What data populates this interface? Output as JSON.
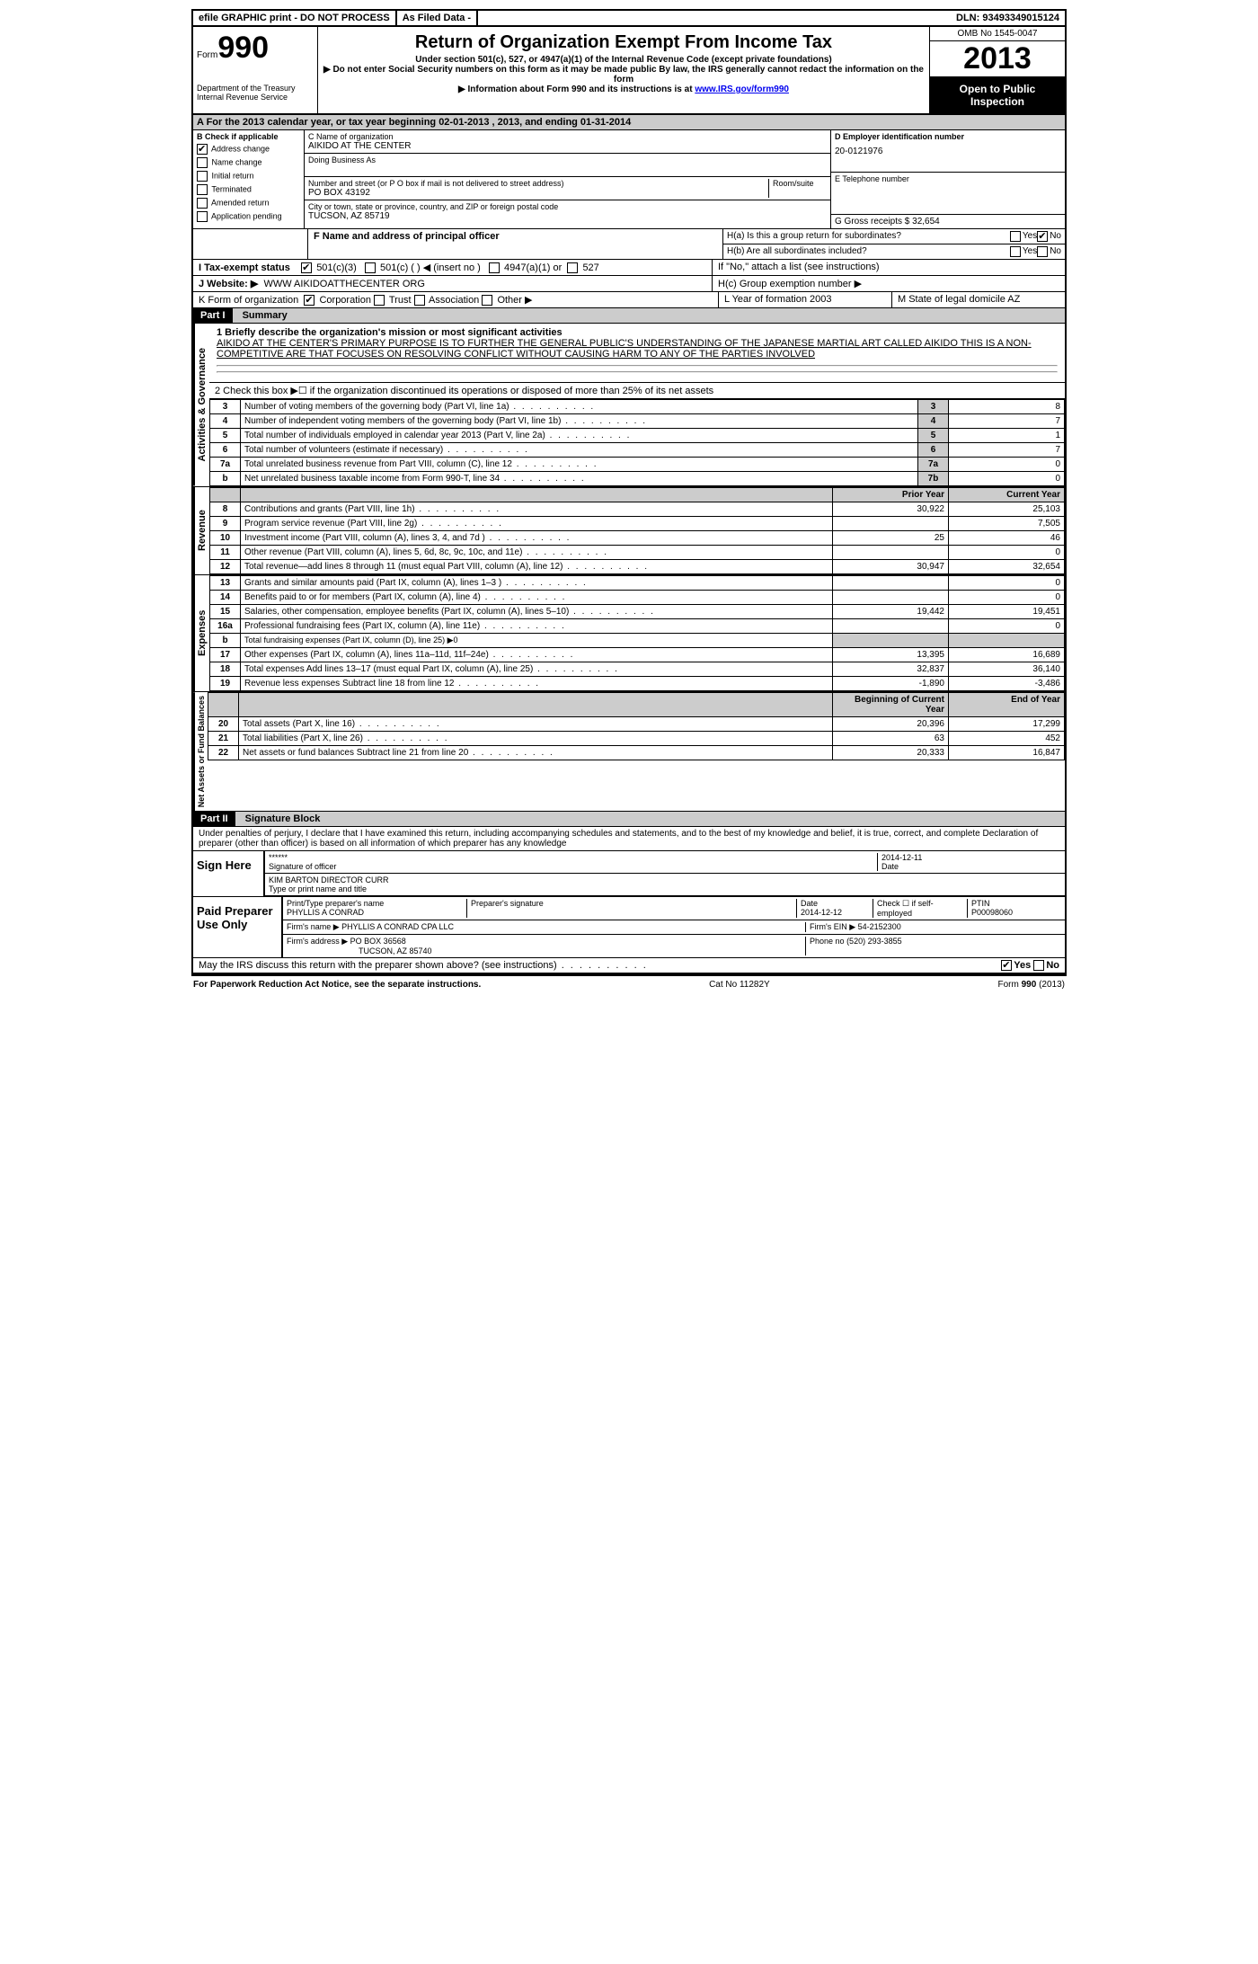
{
  "top_bar": {
    "efile": "efile GRAPHIC print - DO NOT PROCESS",
    "filed": "As Filed Data -",
    "dln_label": "DLN:",
    "dln": "93493349015124"
  },
  "header": {
    "form_label": "Form",
    "form_num": "990",
    "dept": "Department of the Treasury",
    "irs": "Internal Revenue Service",
    "title": "Return of Organization Exempt From Income Tax",
    "sub1": "Under section 501(c), 527, or 4947(a)(1) of the Internal Revenue Code (except private foundations)",
    "sub2": "▶ Do not enter Social Security numbers on this form as it may be made public  By law, the IRS generally cannot redact the information on the form",
    "sub3": "▶ Information about Form 990 and its instructions is at ",
    "link": "www.IRS.gov/form990",
    "omb": "OMB No  1545-0047",
    "year": "2013",
    "open": "Open to Public Inspection"
  },
  "row_a": "A  For the 2013 calendar year, or tax year beginning 02-01-2013       , 2013, and ending 01-31-2014",
  "section_b": {
    "label": "B  Check if applicable",
    "items": [
      "Address change",
      "Name change",
      "Initial return",
      "Terminated",
      "Amended return",
      "Application pending"
    ],
    "checked": [
      0
    ]
  },
  "section_c": {
    "name_label": "C Name of organization",
    "name": "AIKIDO AT THE CENTER",
    "dba_label": "Doing Business As",
    "addr_label": "Number and street (or P O  box if mail is not delivered to street address)",
    "room_label": "Room/suite",
    "addr": "PO BOX 43192",
    "city_label": "City or town, state or province, country, and ZIP or foreign postal code",
    "city": "TUCSON, AZ  85719"
  },
  "section_d": {
    "label": "D Employer identification number",
    "value": "20-0121976"
  },
  "section_e": {
    "label": "E Telephone number"
  },
  "section_g": {
    "label": "G Gross receipts $",
    "value": "32,654"
  },
  "f_label": "F   Name and address of principal officer",
  "h": {
    "a": "H(a)  Is this a group return for subordinates?",
    "b": "H(b)  Are all subordinates included?",
    "b_note": "If \"No,\" attach a list  (see instructions)",
    "c": "H(c)   Group exemption number ▶",
    "yes": "Yes",
    "no": "No"
  },
  "i_label": "I   Tax-exempt status",
  "i_opts": [
    "501(c)(3)",
    "501(c) (  ) ◀ (insert no )",
    "4947(a)(1) or",
    "527"
  ],
  "j_label": "J   Website: ▶",
  "j_value": "WWW AIKIDOATTHECENTER ORG",
  "k_label": "K Form of organization",
  "k_opts": [
    "Corporation",
    "Trust",
    "Association",
    "Other ▶"
  ],
  "l_label": "L Year of formation  2003",
  "m_label": "M State of legal domicile  AZ",
  "part1": {
    "label": "Part I",
    "title": "Summary",
    "q1": "1   Briefly describe the organization's mission or most significant activities",
    "mission": "AIKIDO AT THE CENTER'S PRIMARY PURPOSE IS TO FURTHER THE GENERAL PUBLIC'S UNDERSTANDING OF THE JAPANESE MARTIAL ART CALLED AIKIDO  THIS IS A NON-COMPETITIVE ARE THAT FOCUSES ON RESOLVING CONFLICT WITHOUT CAUSING HARM TO ANY OF THE PARTIES INVOLVED",
    "q2": "2   Check this box ▶☐  if the organization discontinued its operations or disposed of more than 25% of its net assets",
    "vert_gov": "Activities & Governance",
    "vert_rev": "Revenue",
    "vert_exp": "Expenses",
    "vert_net": "Net Assets or Fund Balances",
    "lines_gov": [
      {
        "n": "3",
        "t": "Number of voting members of the governing body (Part VI, line 1a)",
        "lbl": "3",
        "v": "8"
      },
      {
        "n": "4",
        "t": "Number of independent voting members of the governing body (Part VI, line 1b)",
        "lbl": "4",
        "v": "7"
      },
      {
        "n": "5",
        "t": "Total number of individuals employed in calendar year 2013 (Part V, line 2a)",
        "lbl": "5",
        "v": "1"
      },
      {
        "n": "6",
        "t": "Total number of volunteers (estimate if necessary)",
        "lbl": "6",
        "v": "7"
      },
      {
        "n": "7a",
        "t": "Total unrelated business revenue from Part VIII, column (C), line 12",
        "lbl": "7a",
        "v": "0"
      },
      {
        "n": "b",
        "t": "Net unrelated business taxable income from Form 990-T, line 34",
        "lbl": "7b",
        "v": "0"
      }
    ],
    "col_prior": "Prior Year",
    "col_current": "Current Year",
    "lines_rev": [
      {
        "n": "8",
        "t": "Contributions and grants (Part VIII, line 1h)",
        "p": "30,922",
        "c": "25,103"
      },
      {
        "n": "9",
        "t": "Program service revenue (Part VIII, line 2g)",
        "p": "",
        "c": "7,505"
      },
      {
        "n": "10",
        "t": "Investment income (Part VIII, column (A), lines 3, 4, and 7d )",
        "p": "25",
        "c": "46"
      },
      {
        "n": "11",
        "t": "Other revenue (Part VIII, column (A), lines 5, 6d, 8c, 9c, 10c, and 11e)",
        "p": "",
        "c": "0"
      },
      {
        "n": "12",
        "t": "Total revenue—add lines 8 through 11 (must equal Part VIII, column (A), line 12)",
        "p": "30,947",
        "c": "32,654"
      }
    ],
    "lines_exp": [
      {
        "n": "13",
        "t": "Grants and similar amounts paid (Part IX, column (A), lines 1–3 )",
        "p": "",
        "c": "0"
      },
      {
        "n": "14",
        "t": "Benefits paid to or for members (Part IX, column (A), line 4)",
        "p": "",
        "c": "0"
      },
      {
        "n": "15",
        "t": "Salaries, other compensation, employee benefits (Part IX, column (A), lines 5–10)",
        "p": "19,442",
        "c": "19,451"
      },
      {
        "n": "16a",
        "t": "Professional fundraising fees (Part IX, column (A), line 11e)",
        "p": "",
        "c": "0"
      },
      {
        "n": "b",
        "t": "Total fundraising expenses (Part IX, column (D), line 25) ▶0",
        "p": "—",
        "c": "—"
      },
      {
        "n": "17",
        "t": "Other expenses (Part IX, column (A), lines 11a–11d, 11f–24e)",
        "p": "13,395",
        "c": "16,689"
      },
      {
        "n": "18",
        "t": "Total expenses  Add lines 13–17 (must equal Part IX, column (A), line 25)",
        "p": "32,837",
        "c": "36,140"
      },
      {
        "n": "19",
        "t": "Revenue less expenses  Subtract line 18 from line 12",
        "p": "-1,890",
        "c": "-3,486"
      }
    ],
    "col_beg": "Beginning of Current Year",
    "col_end": "End of Year",
    "lines_net": [
      {
        "n": "20",
        "t": "Total assets (Part X, line 16)",
        "p": "20,396",
        "c": "17,299"
      },
      {
        "n": "21",
        "t": "Total liabilities (Part X, line 26)",
        "p": "63",
        "c": "452"
      },
      {
        "n": "22",
        "t": "Net assets or fund balances  Subtract line 21 from line 20",
        "p": "20,333",
        "c": "16,847"
      }
    ]
  },
  "part2": {
    "label": "Part II",
    "title": "Signature Block",
    "perjury": "Under penalties of perjury, I declare that I have examined this return, including accompanying schedules and statements, and to the best of my knowledge and belief, it is true, correct, and complete  Declaration of preparer (other than officer) is based on all information of which preparer has any knowledge",
    "sign_here": "Sign Here",
    "sig_mask": "******",
    "sig_label": "Signature of officer",
    "date_label": "Date",
    "sig_date": "2014-12-11",
    "name": "KIM BARTON  DIRECTOR CURR",
    "name_label": "Type or print name and title",
    "paid": "Paid Preparer Use Only",
    "prep_name_label": "Print/Type preparer's name",
    "prep_name": "PHYLLIS A CONRAD",
    "prep_sig_label": "Preparer's signature",
    "prep_date": "2014-12-12",
    "check_label": "Check ☐ if self-employed",
    "ptin_label": "PTIN",
    "ptin": "P00098060",
    "firm_name_label": "Firm's name    ▶",
    "firm_name": "PHYLLIS A CONRAD CPA LLC",
    "ein_label": "Firm's EIN ▶",
    "ein": "54-2152300",
    "firm_addr_label": "Firm's address ▶",
    "firm_addr1": "PO BOX 36568",
    "firm_addr2": "TUCSON, AZ  85740",
    "phone_label": "Phone no",
    "phone": "(520) 293-3855",
    "discuss": "May the IRS discuss this return with the preparer shown above? (see instructions)"
  },
  "footer": {
    "left": "For Paperwork Reduction Act Notice, see the separate instructions.",
    "mid": "Cat No  11282Y",
    "right": "Form 990 (2013)"
  }
}
